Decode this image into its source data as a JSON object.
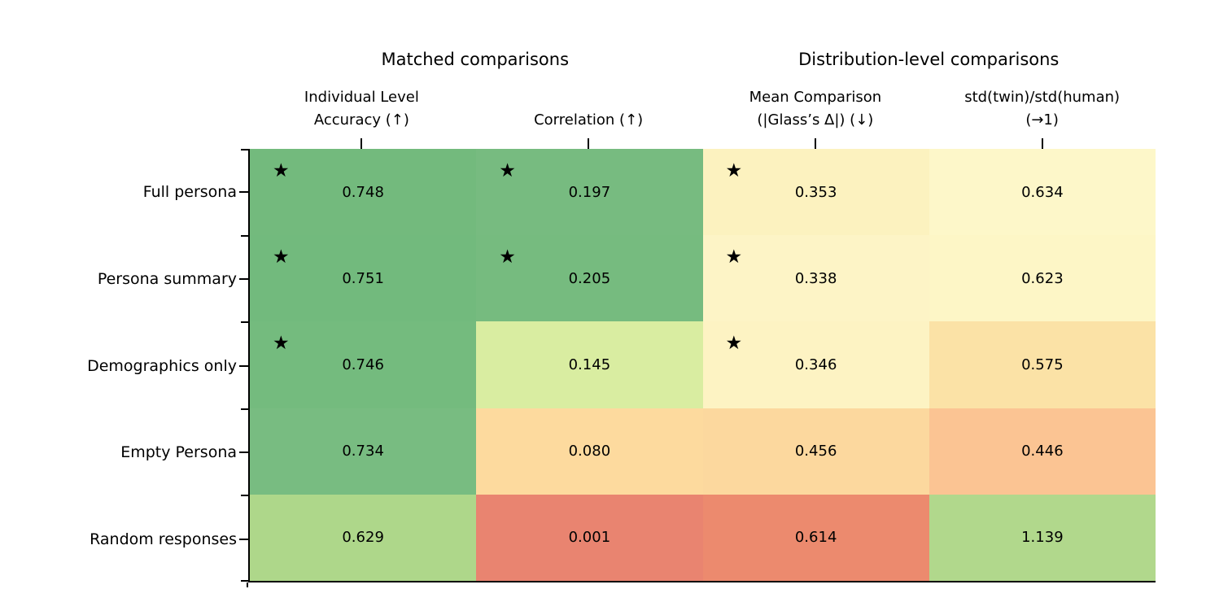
{
  "figure": {
    "background": "#ffffff",
    "text_color": "#000000"
  },
  "chart_data": {
    "type": "heatmap",
    "column_groups": [
      {
        "label": "Matched comparisons",
        "columns": [
          0,
          1
        ]
      },
      {
        "label": "Distribution-level comparisons",
        "columns": [
          2,
          3
        ]
      }
    ],
    "columns": [
      {
        "id": "individual-level-accuracy",
        "label_lines": [
          "Individual Level",
          "Accuracy (↑)"
        ]
      },
      {
        "id": "correlation",
        "label_lines": [
          "Correlation (↑)"
        ]
      },
      {
        "id": "mean-comparison-glass-delta",
        "label_lines": [
          "Mean Comparison",
          "(|Glass’s Δ|) (↓)"
        ]
      },
      {
        "id": "std-twin-over-std-human",
        "label_lines": [
          "std(twin)/std(human)",
          "(→1)"
        ]
      }
    ],
    "rows": [
      "Full persona",
      "Persona summary",
      "Demographics only",
      "Empty Persona",
      "Random responses"
    ],
    "star_marker": "★",
    "cells": [
      [
        {
          "value": "0.748",
          "star": true,
          "color": "#73ba7d"
        },
        {
          "value": "0.197",
          "star": true,
          "color": "#77bb80"
        },
        {
          "value": "0.353",
          "star": true,
          "color": "#fcf2bf"
        },
        {
          "value": "0.634",
          "star": false,
          "color": "#fdf7c9"
        }
      ],
      [
        {
          "value": "0.751",
          "star": true,
          "color": "#72ba7d"
        },
        {
          "value": "0.205",
          "star": true,
          "color": "#76bb7f"
        },
        {
          "value": "0.338",
          "star": true,
          "color": "#fdf4c6"
        },
        {
          "value": "0.623",
          "star": false,
          "color": "#fdf6c6"
        }
      ],
      [
        {
          "value": "0.746",
          "star": true,
          "color": "#74bb7e"
        },
        {
          "value": "0.145",
          "star": false,
          "color": "#d9eda1"
        },
        {
          "value": "0.346",
          "star": true,
          "color": "#fdf3c3"
        },
        {
          "value": "0.575",
          "star": false,
          "color": "#fbe2a6"
        }
      ],
      [
        {
          "value": "0.734",
          "star": false,
          "color": "#78bc81"
        },
        {
          "value": "0.080",
          "star": false,
          "color": "#fdda9e"
        },
        {
          "value": "0.456",
          "star": false,
          "color": "#fcd89e"
        },
        {
          "value": "0.446",
          "star": false,
          "color": "#fbc493"
        }
      ],
      [
        {
          "value": "0.629",
          "star": false,
          "color": "#aed78a"
        },
        {
          "value": "0.001",
          "star": false,
          "color": "#e98470"
        },
        {
          "value": "0.614",
          "star": false,
          "color": "#ec8a6e"
        },
        {
          "value": "1.139",
          "star": false,
          "color": "#b1d88c"
        }
      ]
    ]
  }
}
